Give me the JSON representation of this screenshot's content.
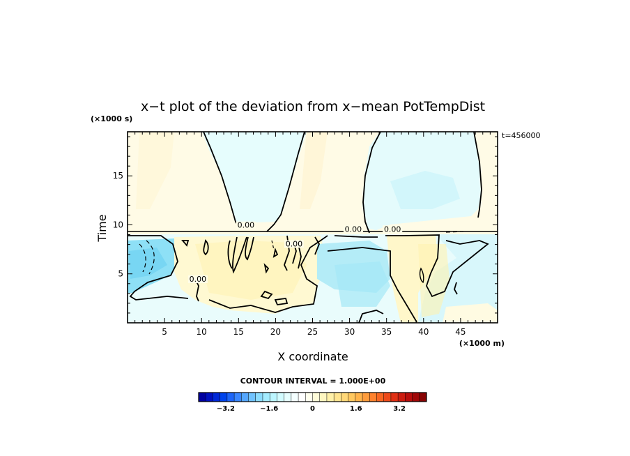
{
  "chart_data": {
    "type": "heatmap",
    "title": "x−t plot of the deviation from x−mean PotTempDist",
    "xlabel": "X coordinate",
    "ylabel": "Time",
    "x_unit": "(×1000 m)",
    "y_unit": "(×1000 s)",
    "time_stamp": "t=456000",
    "xlim": [
      0,
      50
    ],
    "ylim": [
      0,
      19.5
    ],
    "x_ticks": [
      5,
      10,
      15,
      20,
      25,
      30,
      35,
      40,
      45
    ],
    "y_ticks": [
      5,
      10,
      15
    ],
    "contour_labels": [
      {
        "text": "0.00",
        "x": 16,
        "y": 9.7
      },
      {
        "text": "0.00",
        "x": 30.5,
        "y": 9.3
      },
      {
        "text": "0.00",
        "x": 35.8,
        "y": 9.3
      },
      {
        "text": "0.00",
        "x": 22.5,
        "y": 7.8
      },
      {
        "text": "0.00",
        "x": 9.5,
        "y": 4.2
      }
    ],
    "contour_interval_label": "CONTOUR INTERVAL = 1.000E+00",
    "colorbar": {
      "ticks": [
        "−3.2",
        "−1.6",
        "0",
        "1.6",
        "3.2"
      ],
      "tick_values": [
        -3.2,
        -1.6,
        0,
        1.6,
        3.2
      ],
      "range": [
        -4.2,
        4.2
      ],
      "colors": [
        "#0000a0",
        "#0010c0",
        "#0028d8",
        "#0044ec",
        "#1e66f8",
        "#3a86ff",
        "#54a6ff",
        "#70c2ff",
        "#8cdcff",
        "#a4ecff",
        "#bcf6ff",
        "#d2fcff",
        "#e6fefe",
        "#f4ffff",
        "#ffffff",
        "#ffffee",
        "#fffcd8",
        "#fff6c0",
        "#fff0a8",
        "#ffe590",
        "#ffd878",
        "#ffc860",
        "#ffb44c",
        "#ff9c3c",
        "#ff822e",
        "#f86622",
        "#ee4a1a",
        "#e03014",
        "#cc1c10",
        "#b80e0c",
        "#a00808",
        "#880404"
      ]
    }
  }
}
